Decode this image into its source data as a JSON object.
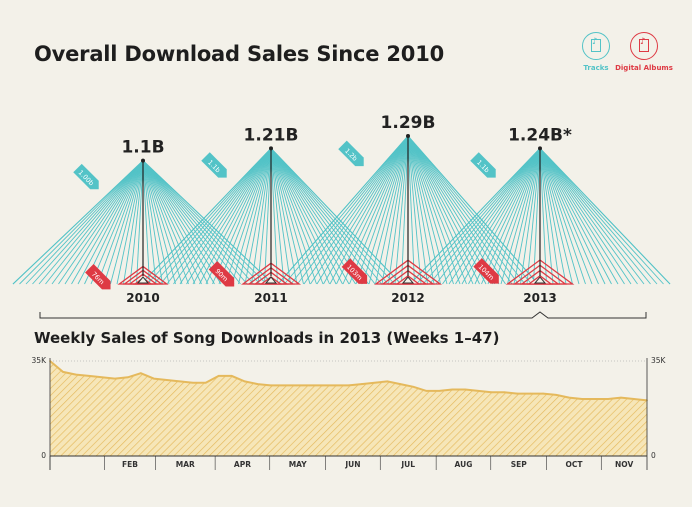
{
  "title": "Overall Download Sales Since 2010",
  "legend": {
    "tracks": "Tracks",
    "albums": "Digital Albums"
  },
  "colors": {
    "tracks": "#53c3c7",
    "albums": "#de3a44",
    "weekly": "#e5b95c"
  },
  "chart_data": [
    {
      "type": "area",
      "title": "Overall Download Sales Since 2010",
      "categories": [
        "2010",
        "2011",
        "2012",
        "2013"
      ],
      "totals": [
        "1.1B",
        "1.21B",
        "1.29B",
        "1.24B*"
      ],
      "series": [
        {
          "name": "Tracks",
          "values": [
            1.0,
            1.1,
            1.2,
            1.1
          ],
          "labels": [
            "1.00b",
            "1.1b",
            "1.2b",
            "1.1b"
          ]
        },
        {
          "name": "Digital Albums",
          "values": [
            76,
            90,
            103,
            104
          ],
          "labels": [
            "76m",
            "90m",
            "103m",
            "104m"
          ]
        }
      ]
    },
    {
      "type": "area",
      "title": "Weekly Sales of Song Downloads in 2013 (Weeks 1–47)",
      "ylim": [
        0,
        35000
      ],
      "ytick_labels": [
        "0",
        "35K"
      ],
      "month_labels": [
        "FEB",
        "MAR",
        "APR",
        "MAY",
        "JUN",
        "JUL",
        "AUG",
        "SEP",
        "OCT",
        "NOV"
      ],
      "weeks": 47,
      "values": [
        35000,
        31000,
        30000,
        29500,
        29000,
        28500,
        29000,
        30500,
        28500,
        28000,
        27500,
        27000,
        27000,
        29500,
        29500,
        27500,
        26500,
        26000,
        26000,
        26000,
        26000,
        26000,
        26000,
        26000,
        26500,
        27000,
        27500,
        26500,
        25500,
        24000,
        24000,
        24500,
        24500,
        24000,
        23500,
        23500,
        23000,
        23000,
        23000,
        22500,
        21500,
        21000,
        21000,
        21000,
        21500,
        21000,
        20500
      ]
    }
  ]
}
